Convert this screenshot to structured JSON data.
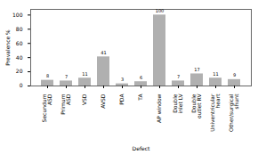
{
  "chart_data": {
    "type": "bar",
    "categories": [
      "Secundum\nASD",
      "Primum\nASD",
      "VSD",
      "AVSD",
      "PDA",
      "TA",
      "AP window",
      "Double\ninlet LV",
      "Double\noutlet RV",
      "Univentricular\nheart",
      "Other/surgical\nshunt"
    ],
    "values": [
      8,
      7,
      11,
      41,
      3,
      6,
      100,
      7,
      17,
      11,
      9
    ],
    "color": "#b0b0b0",
    "xlabel": "Defect",
    "ylabel": "Prevalence %",
    "ylim": [
      0,
      108
    ],
    "yticks": [
      0,
      20,
      40,
      60,
      80,
      100
    ],
    "grid": false,
    "data_labels": true
  }
}
